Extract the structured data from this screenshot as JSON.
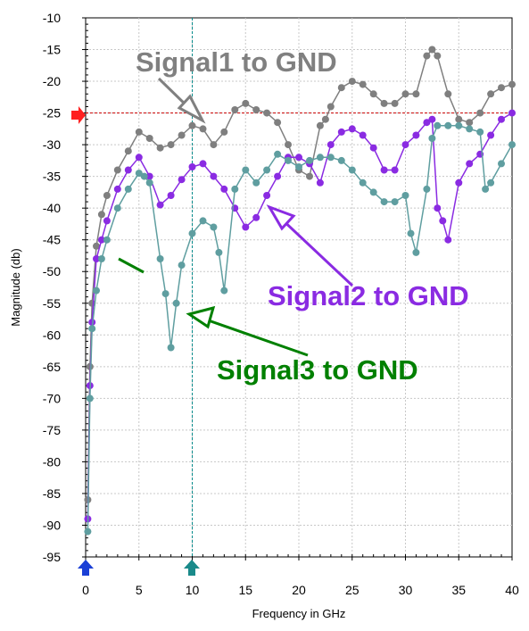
{
  "chart_data": {
    "type": "line",
    "xlabel": "Frequency in GHz",
    "ylabel": "Magnitude (db)",
    "xlim": [
      0,
      40
    ],
    "ylim": [
      -95,
      -10
    ],
    "x_ticks": [
      "0",
      "5",
      "10",
      "15",
      "20",
      "25",
      "30",
      "35",
      "40"
    ],
    "y_ticks": [
      "-10",
      "-15",
      "-20",
      "-25",
      "-30",
      "-35",
      "-40",
      "-45",
      "-50",
      "-55",
      "-60",
      "-65",
      "-70",
      "-75",
      "-80",
      "-85",
      "-90",
      "-95"
    ],
    "reference_line_y": -25,
    "marker_line_x": 10,
    "grid": true,
    "series": [
      {
        "name": "Signal1 to GND",
        "color": "#7f7f7f",
        "x": [
          0.2,
          0.4,
          0.6,
          1,
          1.5,
          2,
          3,
          4,
          5,
          6,
          7,
          8,
          9,
          10,
          11,
          12,
          13,
          14,
          15,
          16,
          17,
          18,
          19,
          20,
          21,
          22,
          22.5,
          23,
          24,
          25,
          26,
          27,
          28,
          29,
          30,
          31,
          32,
          32.5,
          33,
          34,
          35,
          36,
          37,
          38,
          39,
          40
        ],
        "y": [
          -86,
          -65,
          -55,
          -46,
          -41,
          -38,
          -34,
          -31,
          -28,
          -29,
          -30.5,
          -30,
          -28.5,
          -27,
          -27.5,
          -30,
          -28,
          -24.5,
          -23.5,
          -24.5,
          -25,
          -26.5,
          -30,
          -34,
          -35,
          -27,
          -26,
          -24,
          -21,
          -20,
          -20.5,
          -22,
          -23.5,
          -23.5,
          -22,
          -22,
          -16,
          -15,
          -16,
          -22,
          -26,
          -26.5,
          -25,
          -22,
          -21,
          -20.5
        ]
      },
      {
        "name": "Signal2 to GND",
        "color": "#8a2be2",
        "x": [
          0.2,
          0.4,
          0.6,
          1,
          1.5,
          2,
          3,
          4,
          5,
          6,
          7,
          8,
          9,
          10,
          11,
          12,
          13,
          14,
          15,
          16,
          17,
          18,
          19,
          20,
          21,
          22,
          23,
          24,
          25,
          26,
          27,
          28,
          29,
          30,
          31,
          32,
          32.5,
          33,
          33.5,
          34,
          35,
          36,
          37,
          38,
          39,
          40
        ],
        "y": [
          -89,
          -68,
          -58,
          -48,
          -45,
          -42,
          -37,
          -34,
          -32,
          -35,
          -39.5,
          -38,
          -35.5,
          -33.5,
          -33,
          -35,
          -37,
          -40,
          -43,
          -41.5,
          -38,
          -35,
          -32,
          -32,
          -33,
          -36,
          -30,
          -28,
          -27.5,
          -28.5,
          -30.5,
          -34,
          -34,
          -30,
          -28.5,
          -26.5,
          -26,
          -40,
          -42,
          -45,
          -36,
          -33,
          -31.5,
          -28.5,
          -26,
          -25
        ]
      },
      {
        "name": "Signal3 to GND",
        "color": "#5f9ea0",
        "x": [
          0.2,
          0.4,
          0.6,
          1,
          1.5,
          2,
          3,
          4,
          5,
          5.5,
          6,
          7,
          7.5,
          8,
          8.5,
          9,
          10,
          11,
          12,
          12.5,
          13,
          14,
          15,
          16,
          17,
          18,
          19,
          20,
          21,
          22,
          23,
          24,
          25,
          26,
          27,
          28,
          29,
          30,
          30.5,
          31,
          32,
          32.5,
          33,
          34,
          35,
          36,
          37,
          37.5,
          38,
          39,
          40
        ],
        "y": [
          -91,
          -70,
          -59,
          -53,
          -48,
          -45,
          -40,
          -37,
          -34.5,
          -35,
          -36,
          -48,
          -53.5,
          -62,
          -55,
          -49,
          -44,
          -42,
          -43,
          -47,
          -53,
          -37,
          -34,
          -36,
          -34,
          -31.5,
          -32.5,
          -33.5,
          -32.5,
          -32,
          -32,
          -32.5,
          -34,
          -36,
          -37.5,
          -39,
          -39,
          -38,
          -44,
          -47,
          -37,
          -29,
          -27,
          -27,
          -27,
          -27.5,
          -28,
          -37,
          -36,
          -33,
          -30
        ]
      }
    ],
    "annotations": [
      {
        "text": "Signal1 to GND",
        "color": "#7f7f7f"
      },
      {
        "text": "Signal2 to GND",
        "color": "#8a2be2"
      },
      {
        "text": "Signal3 to GND",
        "color": "#008000"
      }
    ],
    "colors": {
      "reference_line": "#cc0000",
      "marker_line": "#008b8b",
      "red_marker": "#ff2020",
      "blue_marker": "#1a3fd6",
      "teal_marker": "#1a8a8a",
      "signal3_annotation": "#008000"
    }
  }
}
